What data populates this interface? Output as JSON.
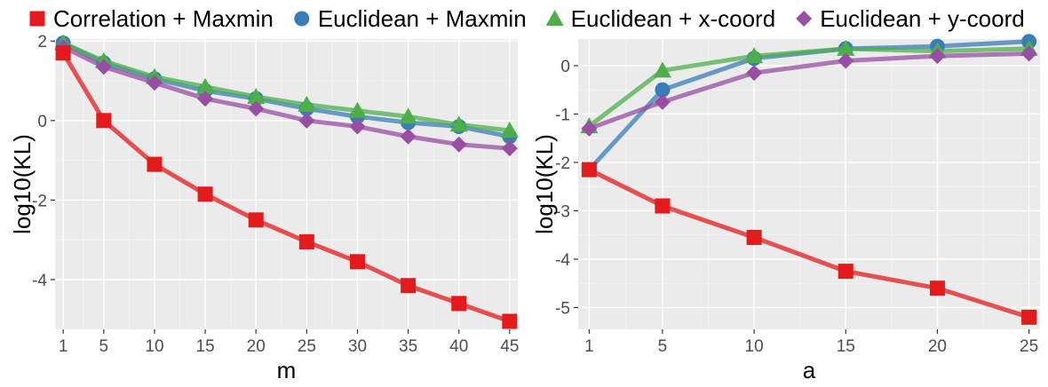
{
  "legend": {
    "placement": "top",
    "entries": [
      {
        "label": "Correlation + Maxmin",
        "color": "#E41A1C",
        "shape": "square"
      },
      {
        "label": "Euclidean + Maxmin",
        "color": "#377EB8",
        "shape": "circle"
      },
      {
        "label": "Euclidean + x-coord",
        "color": "#4DAF4A",
        "shape": "triangle"
      },
      {
        "label": "Euclidean + y-coord",
        "color": "#984EA3",
        "shape": "diamond"
      }
    ]
  },
  "chart_data": [
    {
      "type": "line",
      "xlabel": "m",
      "ylabel": "log10(KL)",
      "x": [
        1,
        5,
        10,
        15,
        20,
        25,
        30,
        35,
        40,
        45
      ],
      "xticks": [
        1,
        5,
        10,
        15,
        20,
        25,
        30,
        35,
        40,
        45
      ],
      "yticks": [
        2,
        0,
        -2,
        -4
      ],
      "xlim": [
        0.2,
        45.8
      ],
      "ylim": [
        -5.25,
        2.05
      ],
      "grid": true,
      "series": [
        {
          "name": "Correlation + Maxmin",
          "values": [
            1.7,
            0.0,
            -1.1,
            -1.85,
            -2.5,
            -3.05,
            -3.55,
            -4.15,
            -4.6,
            -5.05
          ]
        },
        {
          "name": "Euclidean + Maxmin",
          "values": [
            1.95,
            1.45,
            1.05,
            0.75,
            0.55,
            0.3,
            0.1,
            -0.05,
            -0.15,
            -0.4
          ]
        },
        {
          "name": "Euclidean + x-coord",
          "values": [
            1.95,
            1.5,
            1.1,
            0.85,
            0.6,
            0.4,
            0.25,
            0.1,
            -0.1,
            -0.25
          ]
        },
        {
          "name": "Euclidean + y-coord",
          "values": [
            1.85,
            1.35,
            0.95,
            0.55,
            0.3,
            0.0,
            -0.15,
            -0.4,
            -0.6,
            -0.7
          ]
        }
      ]
    },
    {
      "type": "line",
      "xlabel": "a",
      "ylabel": "log10(KL)",
      "x": [
        1,
        5,
        10,
        15,
        20,
        25
      ],
      "xticks": [
        1,
        5,
        10,
        15,
        20,
        25
      ],
      "yticks": [
        0,
        -1,
        -2,
        -3,
        -4,
        -5
      ],
      "xlim": [
        0.4,
        25.6
      ],
      "ylim": [
        -5.45,
        0.55
      ],
      "grid": true,
      "series": [
        {
          "name": "Correlation + Maxmin",
          "values": [
            -2.15,
            -2.9,
            -3.55,
            -4.25,
            -4.6,
            -5.2
          ]
        },
        {
          "name": "Euclidean + Maxmin",
          "values": [
            -2.15,
            -0.5,
            0.15,
            0.35,
            0.4,
            0.5
          ]
        },
        {
          "name": "Euclidean + x-coord",
          "values": [
            -1.25,
            -0.1,
            0.2,
            0.35,
            0.3,
            0.35
          ]
        },
        {
          "name": "Euclidean + y-coord",
          "values": [
            -1.3,
            -0.75,
            -0.15,
            0.1,
            0.2,
            0.25
          ]
        }
      ]
    }
  ]
}
